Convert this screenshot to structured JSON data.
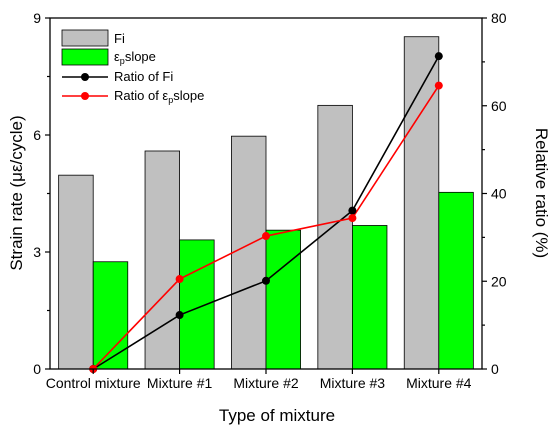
{
  "chart_data": {
    "type": "bar",
    "categories": [
      "Control mixture",
      "Mixture #1",
      "Mixture #2",
      "Mixture #3",
      "Mixture #4"
    ],
    "xlabel": "Type of mixture",
    "ylabel": "Strain rate (με/cycle)",
    "y2label": "Relative ratio (%)",
    "ylim": [
      0,
      9
    ],
    "y2lim": [
      0,
      80
    ],
    "yticks": [
      0,
      3,
      6,
      9
    ],
    "y2ticks": [
      0,
      20,
      40,
      60,
      80
    ],
    "legend_position": "top-left",
    "grid": false,
    "bar_series": [
      {
        "name": "Fi",
        "axis": "left",
        "color": "#c0c0c0",
        "values": [
          4.97,
          5.59,
          5.97,
          6.76,
          8.52
        ]
      },
      {
        "name_main": "ε",
        "name_sub": "p",
        "name_rest": "slope",
        "axis": "left",
        "color": "#00ff00",
        "values": [
          2.75,
          3.31,
          3.56,
          3.68,
          4.53
        ]
      }
    ],
    "line_series": [
      {
        "name": "Ratio of Fi",
        "axis": "right",
        "color": "#000000",
        "values": [
          0,
          12.3,
          20.1,
          36.1,
          71.3
        ]
      },
      {
        "name_main": "Ratio of ε",
        "name_sub": "p",
        "name_rest": "slope",
        "axis": "right",
        "color": "#ff0000",
        "values": [
          0,
          20.5,
          30.3,
          34.4,
          64.6
        ]
      }
    ]
  }
}
